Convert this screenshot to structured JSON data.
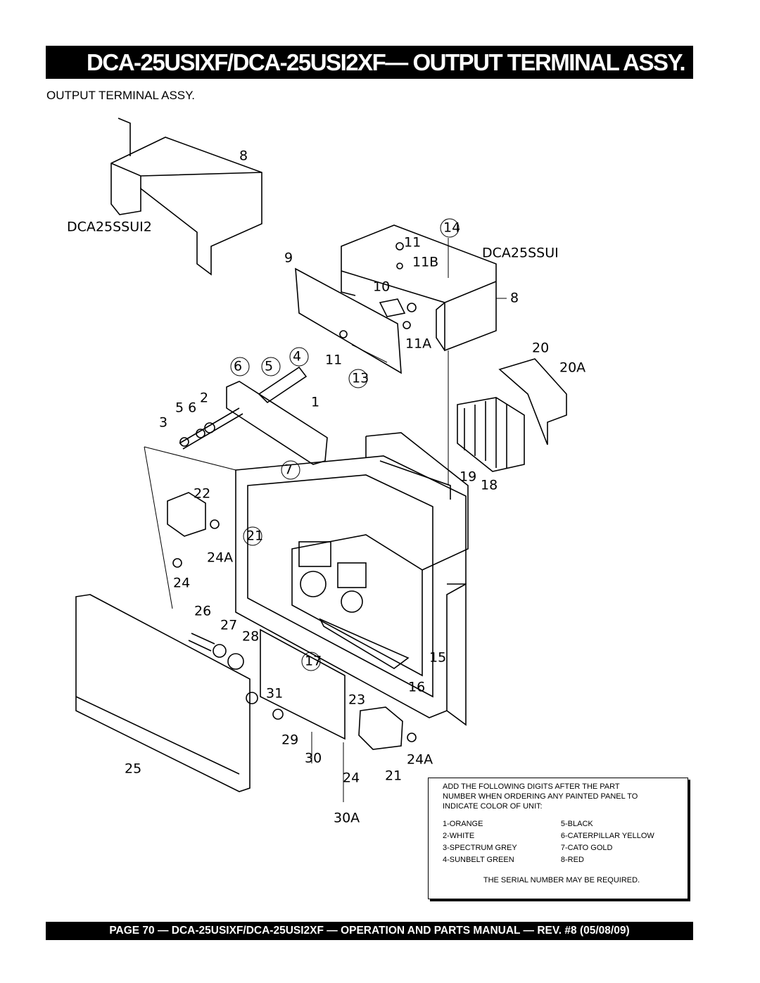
{
  "header": {
    "title": "DCA-25USIXF/DCA-25USI2XF— OUTPUT TERMINAL ASSY."
  },
  "section_title": "OUTPUT TERMINAL ASSY.",
  "diagram": {
    "callouts": [
      "8",
      "DCA25SSUI2",
      "14",
      "11",
      "DCA25SSUI",
      "9",
      "11B",
      "10",
      "8",
      "20",
      "11A",
      "4",
      "6",
      "5",
      "11",
      "20A",
      "13",
      "2",
      "1",
      "5 6",
      "3",
      "7",
      "19",
      "18",
      "22",
      "21",
      "24A",
      "24",
      "26",
      "27",
      "28",
      "17",
      "15",
      "16",
      "31",
      "23",
      "29",
      "30",
      "24A",
      "25",
      "24",
      "21",
      "30A"
    ]
  },
  "note": {
    "lines": [
      "ADD THE FOLLOWING DIGITS AFTER THE PART",
      "NUMBER WHEN ORDERING ANY PAINTED PANEL TO",
      "INDICATE COLOR OF UNIT:"
    ],
    "colors": [
      [
        "1-ORANGE",
        "5-BLACK"
      ],
      [
        "2-WHITE",
        "6-CATERPILLAR YELLOW"
      ],
      [
        "3-SPECTRUM GREY",
        "7-CATO GOLD"
      ],
      [
        "4-SUNBELT GREEN",
        "8-RED"
      ]
    ],
    "serial": "THE SERIAL NUMBER MAY BE REQUIRED."
  },
  "footer": {
    "text": "PAGE 70 — DCA-25USIXF/DCA-25USI2XF — OPERATION AND PARTS MANUAL — REV. #8 (05/08/09)"
  }
}
